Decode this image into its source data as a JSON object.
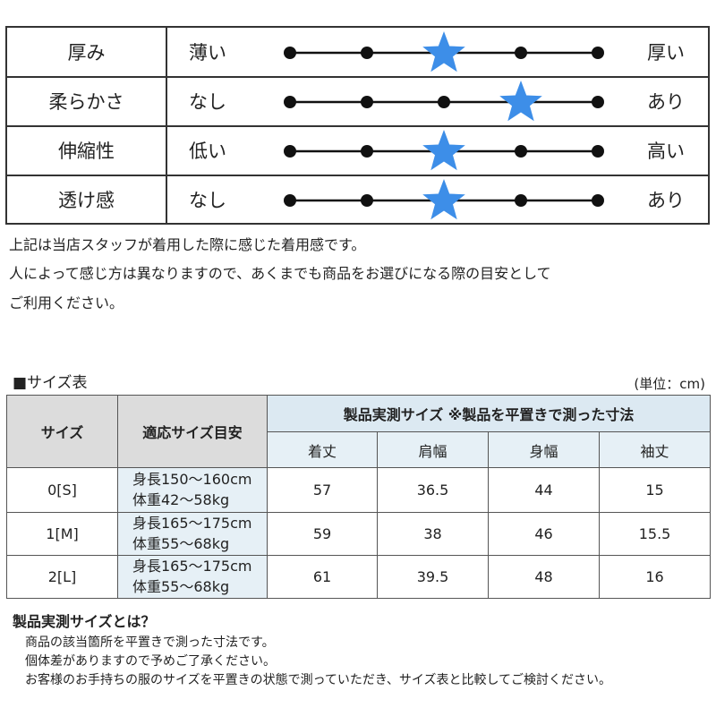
{
  "feel_scale": {
    "rows": [
      {
        "label": "厚み",
        "low": "薄い",
        "high": "厚い",
        "level": 3
      },
      {
        "label": "柔らかさ",
        "low": "なし",
        "high": "あり",
        "level": 4
      },
      {
        "label": "伸縮性",
        "low": "低い",
        "high": "高い",
        "level": 3
      },
      {
        "label": "透け感",
        "low": "なし",
        "high": "あり",
        "level": 3
      }
    ],
    "steps": 5,
    "star_color": "#3d8ee8"
  },
  "notes": {
    "line1": "上記は当店スタッフが着用した際に感じた着用感です。",
    "line2": "人によって感じ方は異なりますので、あくまでも商品をお選びになる際の目安として",
    "line3": "ご利用ください。"
  },
  "size_table": {
    "heading": "■サイズ表",
    "unit": "(単位：cm)",
    "col_size": "サイズ",
    "col_fit": "適応サイズ目安",
    "col_group": "製品実測サイズ ※製品を平置きで測った寸法",
    "measure_cols": [
      "着丈",
      "肩幅",
      "身幅",
      "袖丈"
    ],
    "rows": [
      {
        "size": "0[S]",
        "height": "身長150～160cm",
        "weight": "体重42～58kg",
        "values": [
          "57",
          "36.5",
          "44",
          "15"
        ]
      },
      {
        "size": "1[M]",
        "height": "身長165～175cm",
        "weight": "体重55～68kg",
        "values": [
          "59",
          "38",
          "46",
          "15.5"
        ]
      },
      {
        "size": "2[L]",
        "height": "身長165～175cm",
        "weight": "体重55～68kg",
        "values": [
          "61",
          "39.5",
          "48",
          "16"
        ]
      }
    ]
  },
  "definition": {
    "title": "製品実測サイズとは？",
    "line1": "商品の該当箇所を平置きで測った寸法です。",
    "line2": "個体差がありますので予めご了承ください。",
    "line3": "お客様のお手持ちの服のサイズを平置きの状態で測っていただき、サイズ表と比較してご検討ください。"
  }
}
